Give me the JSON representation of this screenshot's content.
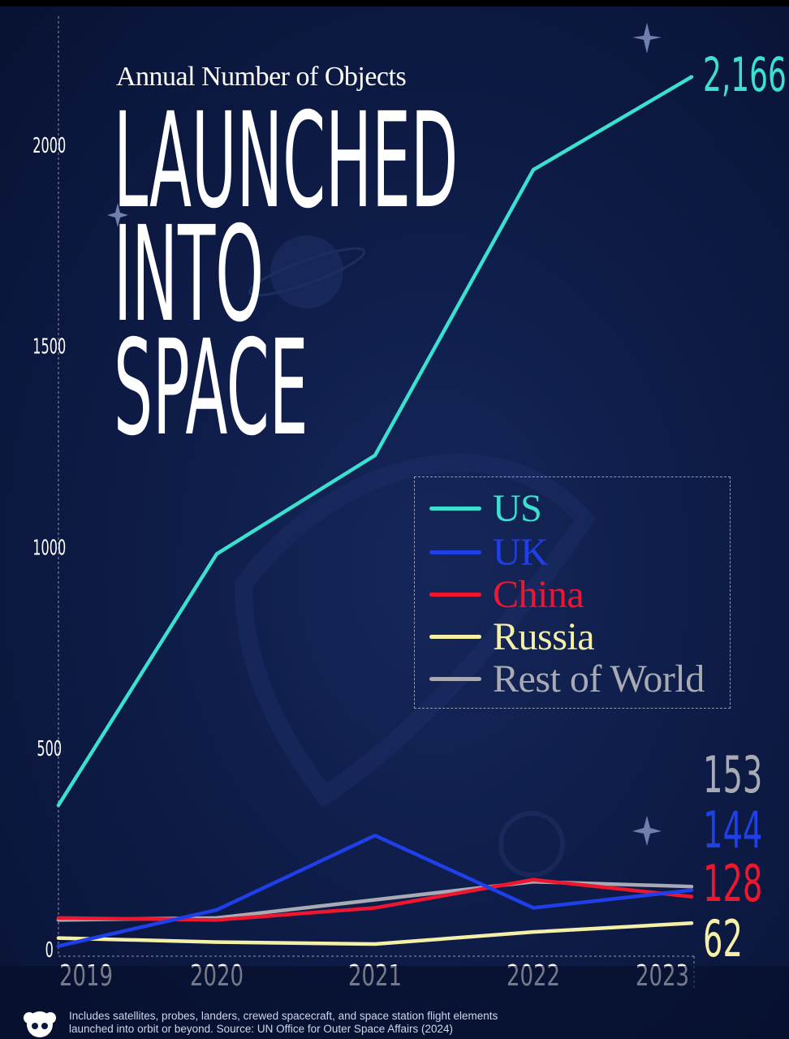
{
  "title": {
    "subtitle": "Annual Number of Objects",
    "line1": "LAUNCHED",
    "line2": "INTO",
    "line3": "SPACE"
  },
  "footer": {
    "note_line1": "Includes satellites, probes, landers, crewed spacecraft, and space station flight elements",
    "note_line2": "launched into orbit or beyond. Source: UN Office for Outer Space Affairs (2024)"
  },
  "colors": {
    "background": "#0e1c48",
    "US": "#3be0d0",
    "UK": "#1f3fe8",
    "China": "#ef1630",
    "Russia": "#f4f0a8",
    "Rest of World": "#a8abb4"
  },
  "chart_data": {
    "type": "line",
    "title": "LAUNCHED INTO SPACE",
    "subtitle": "Annual Number of Objects",
    "x": [
      "2019",
      "2020",
      "2021",
      "2022",
      "2023"
    ],
    "ylim": [
      0,
      2200
    ],
    "y_ticks": [
      "0",
      "500",
      "1000",
      "1500",
      "2000"
    ],
    "grid": false,
    "legend_position": "center-right",
    "series": [
      {
        "name": "US",
        "values": [
          355,
          980,
          1225,
          1935,
          2166
        ],
        "end_label": "2,166"
      },
      {
        "name": "UK",
        "values": [
          5,
          95,
          280,
          100,
          144
        ],
        "end_label": "144"
      },
      {
        "name": "China",
        "values": [
          75,
          70,
          100,
          170,
          128
        ],
        "end_label": "128"
      },
      {
        "name": "Russia",
        "values": [
          25,
          15,
          10,
          40,
          62
        ],
        "end_label": "62"
      },
      {
        "name": "Rest of World",
        "values": [
          70,
          75,
          120,
          165,
          153
        ],
        "end_label": "153"
      }
    ]
  }
}
